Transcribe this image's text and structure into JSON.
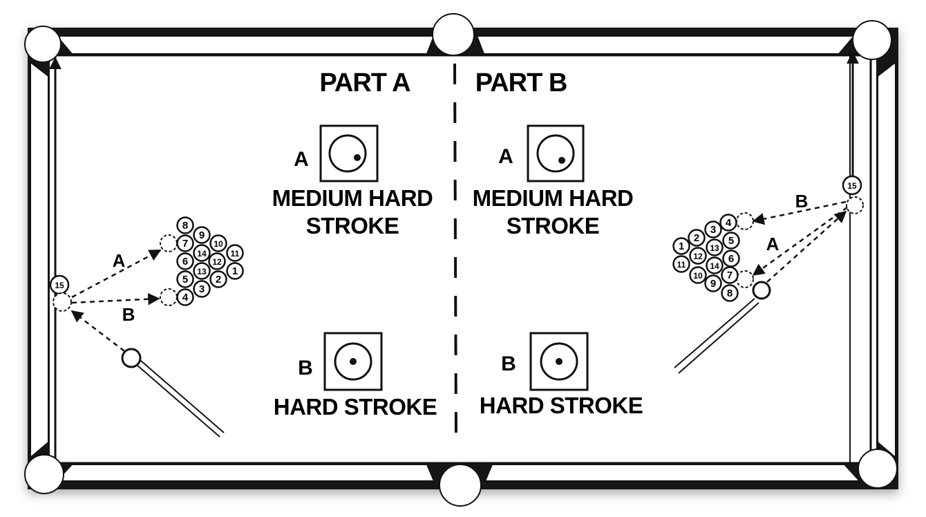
{
  "part_a": {
    "title": "PART A",
    "shot_a": {
      "letter": "A",
      "line1": "MEDIUM HARD",
      "line2": "STROKE"
    },
    "shot_b": {
      "letter": "B",
      "line1": "HARD STROKE"
    },
    "path_a_label": "A",
    "path_b_label": "B",
    "object_ball": "15",
    "rack": [
      "8",
      "9",
      "7",
      "10",
      "11",
      "6",
      "14",
      "12",
      "1",
      "5",
      "13",
      "2",
      "4",
      "3"
    ]
  },
  "part_b": {
    "title": "PART B",
    "shot_a": {
      "letter": "A",
      "line1": "MEDIUM HARD",
      "line2": "STROKE"
    },
    "shot_b": {
      "letter": "B",
      "line1": "HARD STROKE"
    },
    "path_a_label": "A",
    "path_b_label": "B",
    "object_ball": "15",
    "rack": [
      "4",
      "3",
      "5",
      "1",
      "2",
      "13",
      "6",
      "12",
      "11",
      "14",
      "7",
      "10",
      "9",
      "8"
    ]
  },
  "colors": {
    "ink": "#111111",
    "paper": "#ffffff",
    "frame": "#141414"
  }
}
